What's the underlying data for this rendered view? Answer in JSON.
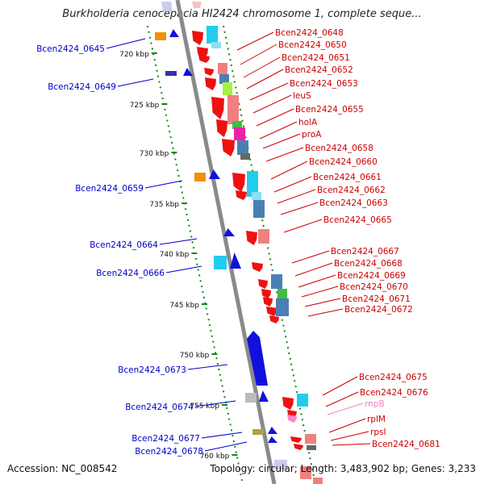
{
  "title": "Burkholderia cenocepacia HI2424 chromosome 1, complete seque...",
  "footer": {
    "accession": "Accession: NC_008542",
    "summary": "Topology: circular; Length: 3,483,902 bp; Genes: 3,233"
  },
  "colors": {
    "red": "#ee1111",
    "red_light": "#f08080",
    "cyan": "#22ccee",
    "cyan_light": "#88e0f0",
    "steel": "#4a7fb5",
    "orange": "#f0900a",
    "blue": "#1111dd",
    "navy": "#3333aa",
    "green_light": "#a8f040",
    "green": "#44bb44",
    "magenta": "#ee22aa",
    "grey": "#bbbbbb",
    "pink": "#ff88cc",
    "olive": "#b0a040",
    "label_red": "#cc0000",
    "label_blue": "#0000cc",
    "label_pink": "#ee88bb"
  },
  "kbp_ticks": [
    "720 kbp",
    "725 kbp",
    "730 kbp",
    "735 kbp",
    "740 kbp",
    "745 kbp",
    "750 kbp",
    "755 kbp",
    "760 kbp"
  ],
  "left_genes": [
    "Bcen2424_0645",
    "Bcen2424_0649",
    "Bcen2424_0659",
    "Bcen2424_0664",
    "Bcen2424_0666",
    "Bcen2424_0673",
    "Bcen2424_0674",
    "Bcen2424_0677",
    "Bcen2424_0678"
  ],
  "right_genes": [
    "Bcen2424_0648",
    "Bcen2424_0650",
    "Bcen2424_0651",
    "Bcen2424_0652",
    "Bcen2424_0653",
    "leuS",
    "Bcen2424_0655",
    "holA",
    "proA",
    "Bcen2424_0658",
    "Bcen2424_0660",
    "Bcen2424_0661",
    "Bcen2424_0662",
    "Bcen2424_0663",
    "Bcen2424_0665",
    "Bcen2424_0667",
    "Bcen2424_0668",
    "Bcen2424_0669",
    "Bcen2424_0670",
    "Bcen2424_0671",
    "Bcen2424_0672",
    "Bcen2424_0675",
    "Bcen2424_0676",
    "rnpB",
    "rplM",
    "rpsI",
    "Bcen2424_0681"
  ]
}
